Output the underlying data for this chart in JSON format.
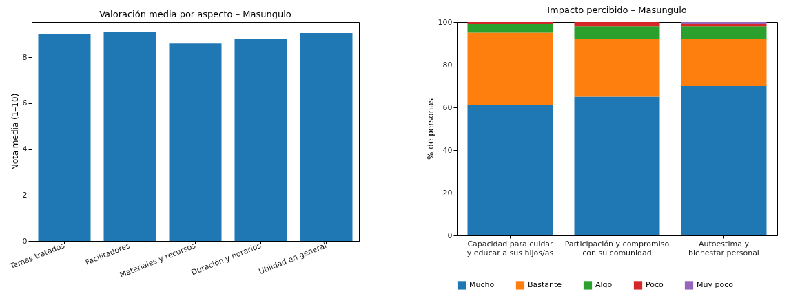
{
  "chart_data": [
    {
      "type": "bar",
      "title": "Valoración media por aspecto – Masungulo",
      "ylabel": "Nota media (1–10)",
      "categories": [
        "Temas tratados",
        "Facilitadores",
        "Materiales y recursos",
        "Duración y horarios",
        "Utilidad en general"
      ],
      "values": [
        9.0,
        9.08,
        8.59,
        8.79,
        9.05
      ],
      "color": "#1f77b4",
      "ylim": [
        0,
        9.53
      ],
      "yticks": [
        0,
        2,
        4,
        6,
        8
      ],
      "grid": false,
      "legend": false
    },
    {
      "type": "bar",
      "title": "Impacto percibido – Masungulo",
      "ylabel": "% de personas",
      "categories": [
        "Capacidad para cuidar\ny educar a sus hijos/as",
        "Participación y compromiso\ncon su comunidad",
        "Autoestima y\nbienestar personal"
      ],
      "stacked": true,
      "ylim": [
        0,
        100
      ],
      "yticks": [
        0,
        20,
        40,
        60,
        80,
        100
      ],
      "grid": false,
      "legend": "bottom",
      "series": [
        {
          "name": "Mucho",
          "color": "#1f77b4",
          "values": [
            61,
            65,
            70
          ]
        },
        {
          "name": "Bastante",
          "color": "#ff7f0e",
          "values": [
            34,
            27,
            22
          ]
        },
        {
          "name": "Algo",
          "color": "#2ca02c",
          "values": [
            4,
            6,
            6
          ]
        },
        {
          "name": "Poco",
          "color": "#d62728",
          "values": [
            1,
            2,
            1
          ]
        },
        {
          "name": "Muy poco",
          "color": "#9467bd",
          "values": [
            0,
            0,
            1
          ]
        }
      ]
    }
  ]
}
